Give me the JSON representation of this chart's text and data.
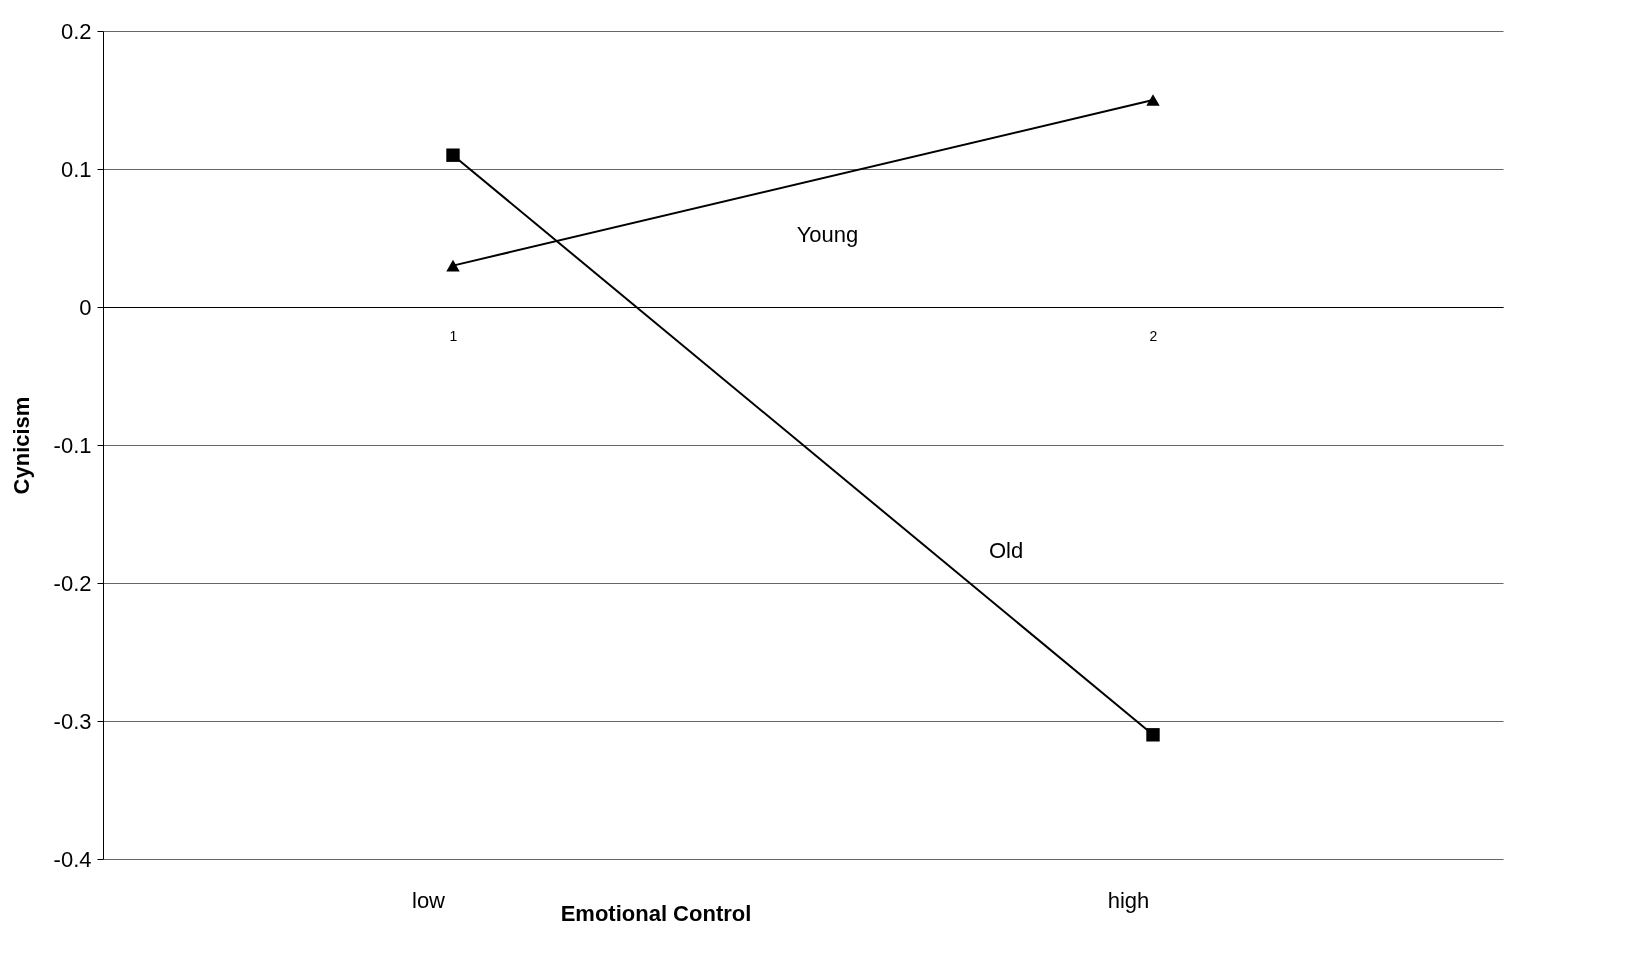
{
  "chart_data": {
    "type": "line",
    "xlabel": "Emotional Control",
    "ylabel": "Cynicism",
    "categories": [
      "1",
      "2"
    ],
    "series": [
      {
        "name": "Young",
        "color": "#000000",
        "marker": "triangle",
        "values": [
          0.03,
          0.15
        ]
      },
      {
        "name": "Old",
        "color": "#000000",
        "marker": "square",
        "values": [
          0.11,
          -0.31
        ]
      }
    ],
    "ylim": [
      -0.4,
      0.2
    ],
    "yticks": [
      -0.4,
      -0.3,
      -0.2,
      -0.1,
      0,
      0.1,
      0.2
    ],
    "grid": "y",
    "annotations": [
      "low",
      "high"
    ]
  }
}
